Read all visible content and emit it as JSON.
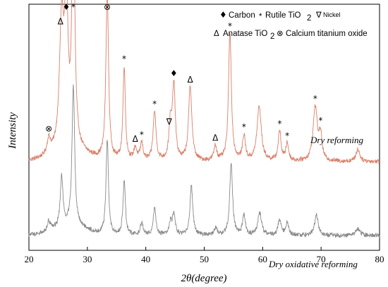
{
  "chart_data": {
    "type": "line",
    "xlabel_main": "2θ",
    "xlabel_unit": "(degree)",
    "ylabel": "Intensity",
    "xlim": [
      20,
      80
    ],
    "xticks": [
      "20",
      "30",
      "40",
      "50",
      "60",
      "70",
      "80"
    ],
    "legend": {
      "line1": {
        "carbon_symbol": "♦",
        "carbon": "Carbon",
        "rutile_symbol": "*",
        "rutile": "Rutile TiO",
        "rutile_sub": "2",
        "nickel_symbol": "∇",
        "nickel": "Nickel"
      },
      "line2": {
        "anatase_symbol": "Δ",
        "anatase": "Anatase TiO",
        "anatase_sub": "2",
        "calcium_symbol": "⊗",
        "calcium": "Calcium titanium oxide"
      }
    },
    "series": [
      {
        "name": "Dry reforming",
        "color": "#d9806a",
        "baseline": 0.36,
        "peaks": [
          {
            "x": 23.4,
            "h": 0.06,
            "w": 0.35
          },
          {
            "x": 25.6,
            "h": 0.52,
            "w": 0.45
          },
          {
            "x": 26.4,
            "h": 0.58,
            "w": 0.35
          },
          {
            "x": 27.6,
            "h": 0.99,
            "w": 0.3
          },
          {
            "x": 33.4,
            "h": 0.68,
            "w": 0.28
          },
          {
            "x": 36.3,
            "h": 0.38,
            "w": 0.25
          },
          {
            "x": 38.2,
            "h": 0.05,
            "w": 0.3
          },
          {
            "x": 39.3,
            "h": 0.07,
            "w": 0.3
          },
          {
            "x": 41.5,
            "h": 0.2,
            "w": 0.3
          },
          {
            "x": 44.2,
            "h": 0.14,
            "w": 0.3
          },
          {
            "x": 44.8,
            "h": 0.3,
            "w": 0.3
          },
          {
            "x": 47.6,
            "h": 0.3,
            "w": 0.35
          },
          {
            "x": 51.9,
            "h": 0.06,
            "w": 0.3
          },
          {
            "x": 54.4,
            "h": 0.52,
            "w": 0.3
          },
          {
            "x": 56.8,
            "h": 0.1,
            "w": 0.3
          },
          {
            "x": 59.4,
            "h": 0.22,
            "w": 0.45
          },
          {
            "x": 62.9,
            "h": 0.12,
            "w": 0.3
          },
          {
            "x": 64.2,
            "h": 0.07,
            "w": 0.3
          },
          {
            "x": 69.0,
            "h": 0.22,
            "w": 0.45
          },
          {
            "x": 69.9,
            "h": 0.1,
            "w": 0.3
          },
          {
            "x": 76.3,
            "h": 0.05,
            "w": 0.4
          }
        ],
        "markers": [
          {
            "x": 23.4,
            "sym": "⊗"
          },
          {
            "x": 25.4,
            "sym": "Δ"
          },
          {
            "x": 26.4,
            "sym": "♦"
          },
          {
            "x": 27.6,
            "sym": "*"
          },
          {
            "x": 33.4,
            "sym": "⊗"
          },
          {
            "x": 36.3,
            "sym": "*"
          },
          {
            "x": 38.2,
            "sym": "Δ"
          },
          {
            "x": 39.3,
            "sym": "*"
          },
          {
            "x": 41.5,
            "sym": "*"
          },
          {
            "x": 44.0,
            "sym": "∇"
          },
          {
            "x": 44.8,
            "sym": "♦"
          },
          {
            "x": 47.6,
            "sym": "Δ"
          },
          {
            "x": 51.9,
            "sym": "Δ"
          },
          {
            "x": 54.4,
            "sym": "*"
          },
          {
            "x": 56.8,
            "sym": "*"
          },
          {
            "x": 62.9,
            "sym": "*"
          },
          {
            "x": 64.2,
            "sym": "*"
          },
          {
            "x": 69.0,
            "sym": "*"
          },
          {
            "x": 69.9,
            "sym": "*"
          }
        ]
      },
      {
        "name": "Dry oxidative reforming",
        "color": "#8a8a8a",
        "baseline": 0.06,
        "peaks": [
          {
            "x": 23.4,
            "h": 0.04,
            "w": 0.3
          },
          {
            "x": 25.6,
            "h": 0.2,
            "w": 0.28
          },
          {
            "x": 27.6,
            "h": 0.57,
            "w": 0.28
          },
          {
            "x": 33.4,
            "h": 0.39,
            "w": 0.25
          },
          {
            "x": 36.3,
            "h": 0.22,
            "w": 0.25
          },
          {
            "x": 39.3,
            "h": 0.05,
            "w": 0.3
          },
          {
            "x": 41.5,
            "h": 0.11,
            "w": 0.28
          },
          {
            "x": 44.2,
            "h": 0.05,
            "w": 0.3
          },
          {
            "x": 44.8,
            "h": 0.08,
            "w": 0.3
          },
          {
            "x": 47.8,
            "h": 0.2,
            "w": 0.3
          },
          {
            "x": 52.0,
            "h": 0.03,
            "w": 0.3
          },
          {
            "x": 54.6,
            "h": 0.29,
            "w": 0.3
          },
          {
            "x": 56.8,
            "h": 0.08,
            "w": 0.3
          },
          {
            "x": 59.5,
            "h": 0.09,
            "w": 0.4
          },
          {
            "x": 62.9,
            "h": 0.06,
            "w": 0.35
          },
          {
            "x": 64.2,
            "h": 0.05,
            "w": 0.3
          },
          {
            "x": 69.2,
            "h": 0.08,
            "w": 0.4
          },
          {
            "x": 76.3,
            "h": 0.03,
            "w": 0.4
          }
        ],
        "markers": []
      }
    ]
  }
}
